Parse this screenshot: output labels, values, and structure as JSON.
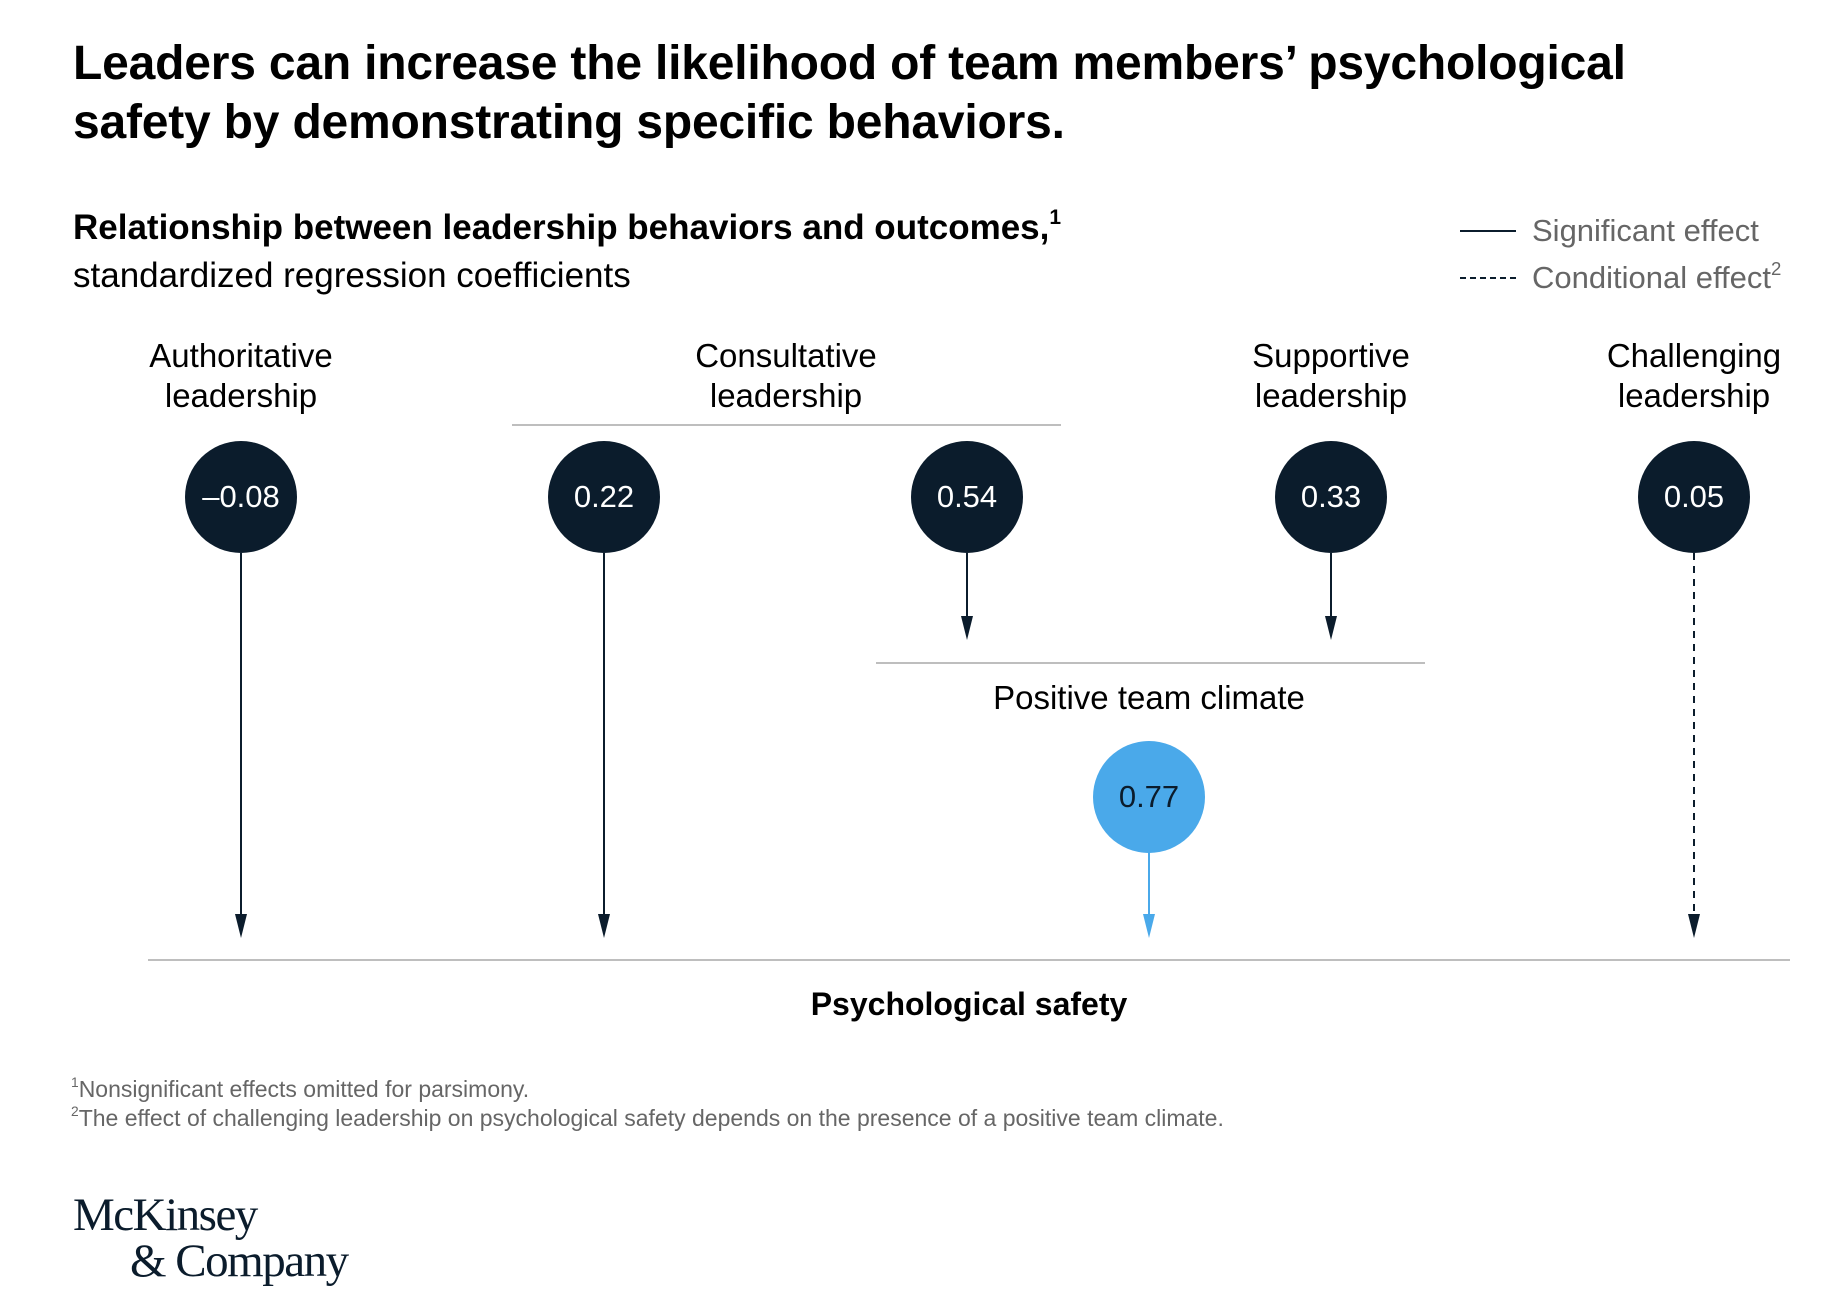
{
  "title": "Leaders can increase the likelihood of team members’ psychological safety by demonstrating specific behaviors.",
  "subtitle": {
    "bold": "Relationship between leadership behaviors and outcomes,",
    "bold_footnote_mark": "1",
    "normal": "standardized regression coefficients"
  },
  "legend": {
    "significant": "Significant effect",
    "conditional": "Conditional effect",
    "conditional_footnote_mark": "2"
  },
  "groups": {
    "authoritative": {
      "line1": "Authoritative",
      "line2": "leadership"
    },
    "consultative": {
      "line1": "Consultative",
      "line2": "leadership"
    },
    "supportive": {
      "line1": "Supportive",
      "line2": "leadership"
    },
    "challenging": {
      "line1": "Challenging",
      "line2": "leadership"
    }
  },
  "nodes": {
    "authoritative": {
      "value": "–0.08",
      "effect": "significant",
      "target": "Psychological safety"
    },
    "consultative_direct": {
      "value": "0.22",
      "effect": "significant",
      "target": "Psychological safety"
    },
    "consultative_climate": {
      "value": "0.54",
      "effect": "significant",
      "target": "Positive team climate"
    },
    "supportive": {
      "value": "0.33",
      "effect": "significant",
      "target": "Positive team climate"
    },
    "challenging": {
      "value": "0.05",
      "effect": "conditional",
      "target": "Psychological safety"
    },
    "climate": {
      "value": "0.77",
      "effect": "significant",
      "target": "Psychological safety"
    }
  },
  "climate_label": "Positive team climate",
  "outcome_label": "Psychological safety",
  "footnotes": [
    {
      "mark": "1",
      "text": "Nonsignificant effects omitted for parsimony."
    },
    {
      "mark": "2",
      "text": "The effect of challenging leadership on psychological safety depends on the presence of a positive team climate."
    }
  ],
  "logo": {
    "line1": "McKinsey",
    "line2": "& Company"
  },
  "colors": {
    "navy": "#0b1c2c",
    "accent_blue": "#4aa9ea",
    "divider_gray": "#a8a8a8",
    "muted_text": "#666666"
  }
}
